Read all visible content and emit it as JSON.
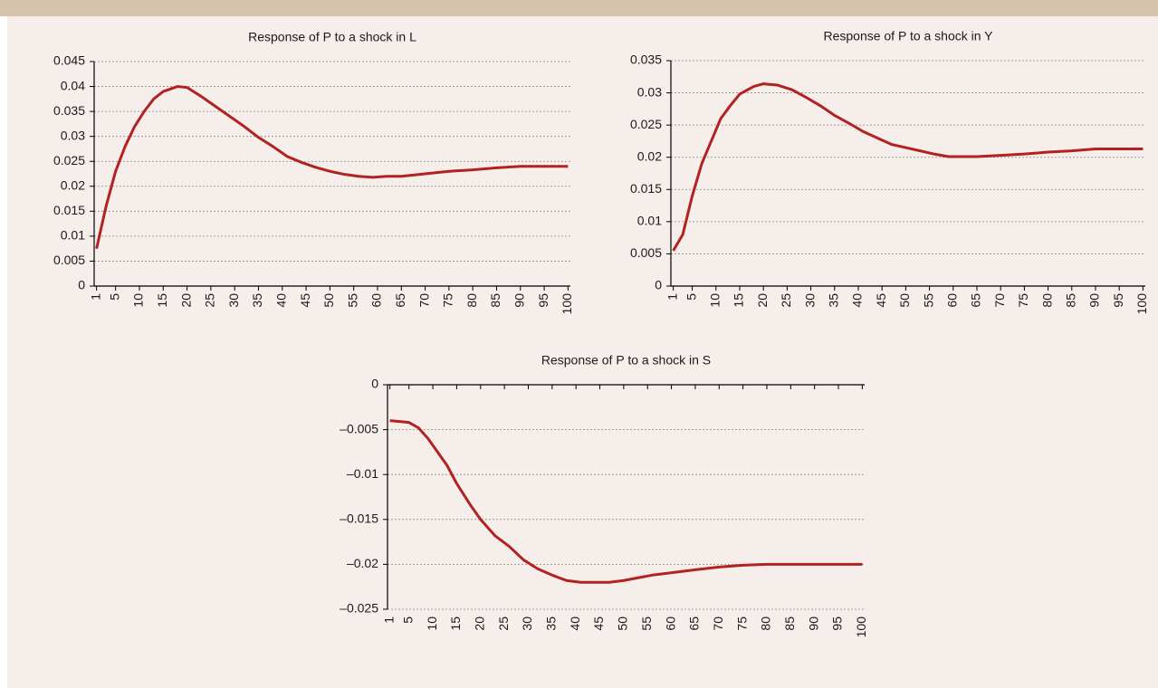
{
  "chart_data": [
    {
      "type": "line",
      "title": "Response of P to a shock in L",
      "color": "#b22222",
      "grid": true,
      "x": [
        1,
        3,
        5,
        7,
        9,
        11,
        13,
        15,
        18,
        20,
        23,
        26,
        29,
        32,
        35,
        38,
        41,
        44,
        47,
        50,
        53,
        56,
        59,
        62,
        65,
        70,
        75,
        80,
        85,
        90,
        95,
        100
      ],
      "values": [
        0.0075,
        0.016,
        0.023,
        0.028,
        0.032,
        0.035,
        0.0375,
        0.039,
        0.04,
        0.0398,
        0.038,
        0.036,
        0.034,
        0.032,
        0.0298,
        0.028,
        0.026,
        0.0248,
        0.0238,
        0.023,
        0.0224,
        0.022,
        0.0218,
        0.022,
        0.022,
        0.0225,
        0.023,
        0.0233,
        0.0237,
        0.024,
        0.024,
        0.024
      ],
      "xlim": [
        0.5,
        100.5
      ],
      "xticks": [
        1,
        5,
        10,
        15,
        20,
        25,
        30,
        35,
        40,
        45,
        50,
        55,
        60,
        65,
        70,
        75,
        80,
        85,
        90,
        95,
        100
      ],
      "ylim": [
        0,
        0.045
      ],
      "yticks": [
        0,
        0.005,
        0.01,
        0.015,
        0.02,
        0.025,
        0.03,
        0.035,
        0.04,
        0.045
      ]
    },
    {
      "type": "line",
      "title": "Response of P to a shock in Y",
      "color": "#b22222",
      "grid": true,
      "x": [
        1,
        3,
        5,
        7,
        9,
        11,
        13,
        15,
        18,
        20,
        23,
        26,
        29,
        32,
        35,
        38,
        41,
        44,
        47,
        50,
        53,
        56,
        59,
        62,
        65,
        70,
        75,
        80,
        85,
        90,
        95,
        100
      ],
      "values": [
        0.0055,
        0.008,
        0.014,
        0.019,
        0.0225,
        0.026,
        0.028,
        0.0298,
        0.031,
        0.0314,
        0.0312,
        0.0305,
        0.0293,
        0.028,
        0.0265,
        0.0253,
        0.024,
        0.023,
        0.022,
        0.0215,
        0.021,
        0.0205,
        0.0201,
        0.0201,
        0.0201,
        0.0203,
        0.0205,
        0.0208,
        0.021,
        0.0213,
        0.0213,
        0.0213
      ],
      "xlim": [
        0.5,
        100.5
      ],
      "xticks": [
        1,
        5,
        10,
        15,
        20,
        25,
        30,
        35,
        40,
        45,
        50,
        55,
        60,
        65,
        70,
        75,
        80,
        85,
        90,
        95,
        100
      ],
      "ylim": [
        0,
        0.035
      ],
      "yticks": [
        0,
        0.005,
        0.01,
        0.015,
        0.02,
        0.025,
        0.03,
        0.035
      ]
    },
    {
      "type": "line",
      "title": "Response of P to a shock in S",
      "color": "#b22222",
      "grid": true,
      "x": [
        1,
        3,
        5,
        7,
        9,
        11,
        13,
        15,
        18,
        20,
        23,
        26,
        29,
        32,
        35,
        38,
        41,
        44,
        47,
        50,
        53,
        56,
        59,
        62,
        65,
        70,
        75,
        80,
        85,
        90,
        95,
        100
      ],
      "values": [
        -0.004,
        -0.0041,
        -0.0042,
        -0.0048,
        -0.006,
        -0.0075,
        -0.009,
        -0.011,
        -0.0135,
        -0.015,
        -0.0168,
        -0.018,
        -0.0195,
        -0.0205,
        -0.0212,
        -0.0218,
        -0.022,
        -0.022,
        -0.022,
        -0.0218,
        -0.0215,
        -0.0212,
        -0.021,
        -0.0208,
        -0.0206,
        -0.0203,
        -0.0201,
        -0.02,
        -0.02,
        -0.02,
        -0.02,
        -0.02
      ],
      "xlim": [
        0.5,
        100.5
      ],
      "xticks": [
        1,
        5,
        10,
        15,
        20,
        25,
        30,
        35,
        40,
        45,
        50,
        55,
        60,
        65,
        70,
        75,
        80,
        85,
        90,
        95,
        100
      ],
      "ylim": [
        -0.025,
        0
      ],
      "yticks": [
        {
          "value": -0.025,
          "label": "–0.025"
        },
        {
          "value": -0.02,
          "label": "–0.02"
        },
        {
          "value": -0.015,
          "label": "–0.015"
        },
        {
          "value": -0.01,
          "label": "–0.01"
        },
        {
          "value": -0.005,
          "label": "–0.005"
        },
        0
      ]
    }
  ]
}
